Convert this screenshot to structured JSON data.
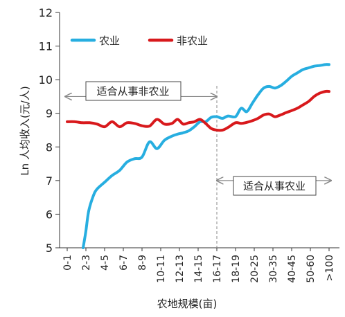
{
  "chart_data": {
    "type": "line",
    "xlabel": "农地规模(亩)",
    "ylabel": "Ln 人均收入(元/人)",
    "ylim": [
      5,
      12
    ],
    "yticks": [
      "5",
      "6",
      "7",
      "8",
      "9",
      "10",
      "11",
      "12"
    ],
    "grid": false,
    "legend_position": "top-left",
    "categories": [
      "0-1",
      "2-3",
      "4-5",
      "6-7",
      "8-9",
      "10-11",
      "12-13",
      "14-15",
      "16-17",
      "18-19",
      "20-25",
      "30-35",
      "40-45",
      "50-60",
      ">100"
    ],
    "colors": {
      "agri": "#27aee0",
      "nonagri": "#d8191c",
      "axis": "#333333",
      "divider": "#888888"
    },
    "series": [
      {
        "name": "农业",
        "color": "#27aee0",
        "x": [
          0.85,
          1.0,
          1.15,
          1.4,
          1.6,
          2.0,
          2.4,
          2.8,
          3.2,
          3.6,
          4.0,
          4.4,
          4.8,
          5.2,
          5.6,
          5.9,
          6.2,
          6.5,
          6.8,
          7.1,
          7.4,
          7.7,
          8.0,
          8.3,
          8.6,
          9.0,
          9.3,
          9.6,
          9.9,
          10.2,
          10.5,
          10.8,
          11.1,
          11.4,
          11.7,
          12.0,
          12.3,
          12.6,
          12.9,
          13.2,
          13.5,
          13.8,
          14.0
        ],
        "y": [
          4.95,
          5.5,
          6.1,
          6.55,
          6.75,
          6.95,
          7.15,
          7.3,
          7.55,
          7.65,
          7.7,
          8.15,
          7.95,
          8.2,
          8.32,
          8.38,
          8.42,
          8.48,
          8.6,
          8.75,
          8.75,
          8.88,
          8.9,
          8.85,
          8.92,
          8.9,
          9.15,
          9.05,
          9.3,
          9.55,
          9.75,
          9.8,
          9.75,
          9.82,
          9.95,
          10.1,
          10.2,
          10.3,
          10.35,
          10.4,
          10.42,
          10.45,
          10.45
        ]
      },
      {
        "name": "非农业",
        "color": "#d8191c",
        "x": [
          0.0,
          0.4,
          0.8,
          1.2,
          1.6,
          2.0,
          2.4,
          2.8,
          3.2,
          3.6,
          4.0,
          4.4,
          4.8,
          5.2,
          5.6,
          5.9,
          6.2,
          6.5,
          6.8,
          7.1,
          7.4,
          7.7,
          8.0,
          8.3,
          8.6,
          9.0,
          9.3,
          9.6,
          9.9,
          10.2,
          10.5,
          10.8,
          11.1,
          11.4,
          11.7,
          12.0,
          12.3,
          12.6,
          12.9,
          13.2,
          13.5,
          13.8,
          14.0
        ],
        "y": [
          8.75,
          8.75,
          8.72,
          8.72,
          8.68,
          8.6,
          8.75,
          8.6,
          8.72,
          8.7,
          8.63,
          8.62,
          8.82,
          8.68,
          8.7,
          8.82,
          8.68,
          8.72,
          8.75,
          8.82,
          8.7,
          8.55,
          8.5,
          8.5,
          8.58,
          8.72,
          8.7,
          8.73,
          8.78,
          8.85,
          8.95,
          8.98,
          8.9,
          8.95,
          9.02,
          9.08,
          9.15,
          9.25,
          9.35,
          9.5,
          9.6,
          9.65,
          9.65
        ]
      }
    ],
    "legend": [
      {
        "label": "农业",
        "series": 0
      },
      {
        "label": "非农业",
        "series": 1
      }
    ],
    "divider_x": 8,
    "annotations": [
      {
        "text": "适合从事非农业",
        "arrow_from": -0.1,
        "arrow_to": 8,
        "y": 9.5,
        "side": "left"
      },
      {
        "text": "适合从事农业",
        "arrow_from": 8,
        "arrow_to": 14.1,
        "y": 7.0,
        "side": "right"
      }
    ]
  }
}
